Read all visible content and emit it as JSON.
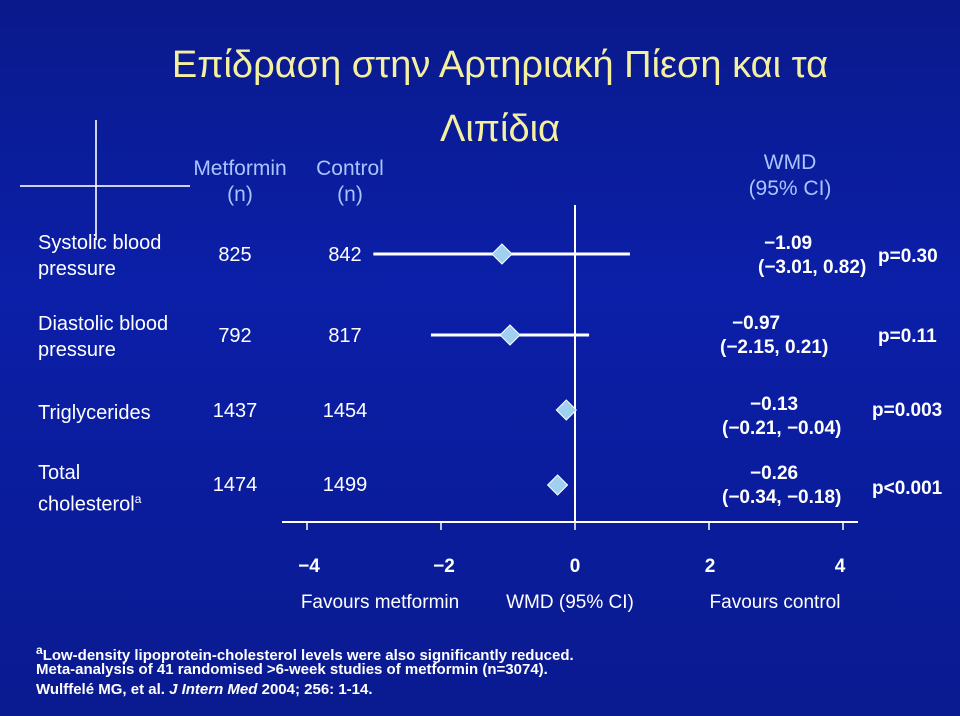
{
  "title": {
    "line1": "Επίδραση στην Αρτηριακή Πίεση και τα",
    "line2": "Λιπίδια"
  },
  "headers": {
    "metformin": [
      "Metformin",
      "(n)"
    ],
    "control": [
      "Control",
      "(n)"
    ],
    "wmd": [
      "WMD",
      "(95% CI)"
    ]
  },
  "chart_data": {
    "type": "forest",
    "rows": [
      {
        "label": [
          "Systolic blood",
          "pressure"
        ],
        "metformin_n": "825",
        "control_n": "842",
        "wmd": -1.09,
        "ci_low": -3.01,
        "ci_high": 0.82,
        "ci_text": [
          "−1.09",
          "(−3.01, 0.82)"
        ],
        "p": "p=0.30"
      },
      {
        "label": [
          "Diastolic blood",
          "pressure"
        ],
        "metformin_n": "792",
        "control_n": "817",
        "wmd": -0.97,
        "ci_low": -2.15,
        "ci_high": 0.21,
        "ci_text": [
          "−0.97",
          "(−2.15, 0.21)"
        ],
        "p": "p=0.11"
      },
      {
        "label": [
          "Triglycerides"
        ],
        "metformin_n": "1437",
        "control_n": "1454",
        "wmd": -0.13,
        "ci_low": -0.21,
        "ci_high": -0.04,
        "ci_text": [
          "−0.13",
          "(−0.21, −0.04)"
        ],
        "p": "p=0.003"
      },
      {
        "label": [
          "Total",
          "cholesterol"
        ],
        "label_sup": "a",
        "metformin_n": "1474",
        "control_n": "1499",
        "wmd": -0.26,
        "ci_low": -0.34,
        "ci_high": -0.18,
        "ci_text": [
          "−0.26",
          "(−0.34, −0.18)"
        ],
        "p": "p<0.001"
      }
    ],
    "x_ticks": [
      -4,
      -2,
      0,
      2,
      4
    ],
    "x_tick_labels": [
      "−4",
      "−2",
      "0",
      "2",
      "4"
    ],
    "xlim": [
      -4,
      4
    ],
    "axis_labels": {
      "left": "Favours metformin",
      "center": "WMD (95% CI)",
      "right": "Favours control"
    },
    "colors": {
      "title": "#f5f0a0",
      "header": "#a9c4ff",
      "marker": "#9fd0f0",
      "line": "#ffffff"
    }
  },
  "footnotes": {
    "line1_sup": "a",
    "line1": "Low-density lipoprotein-cholesterol levels were also significantly reduced.",
    "line2": "Meta-analysis of 41 randomised >6-week studies of metformin (n=3074).",
    "line3_pre": "Wulffelé MG, et al. ",
    "line3_journal": "J Intern Med",
    "line3_post": " 2004; 256: 1-14."
  }
}
